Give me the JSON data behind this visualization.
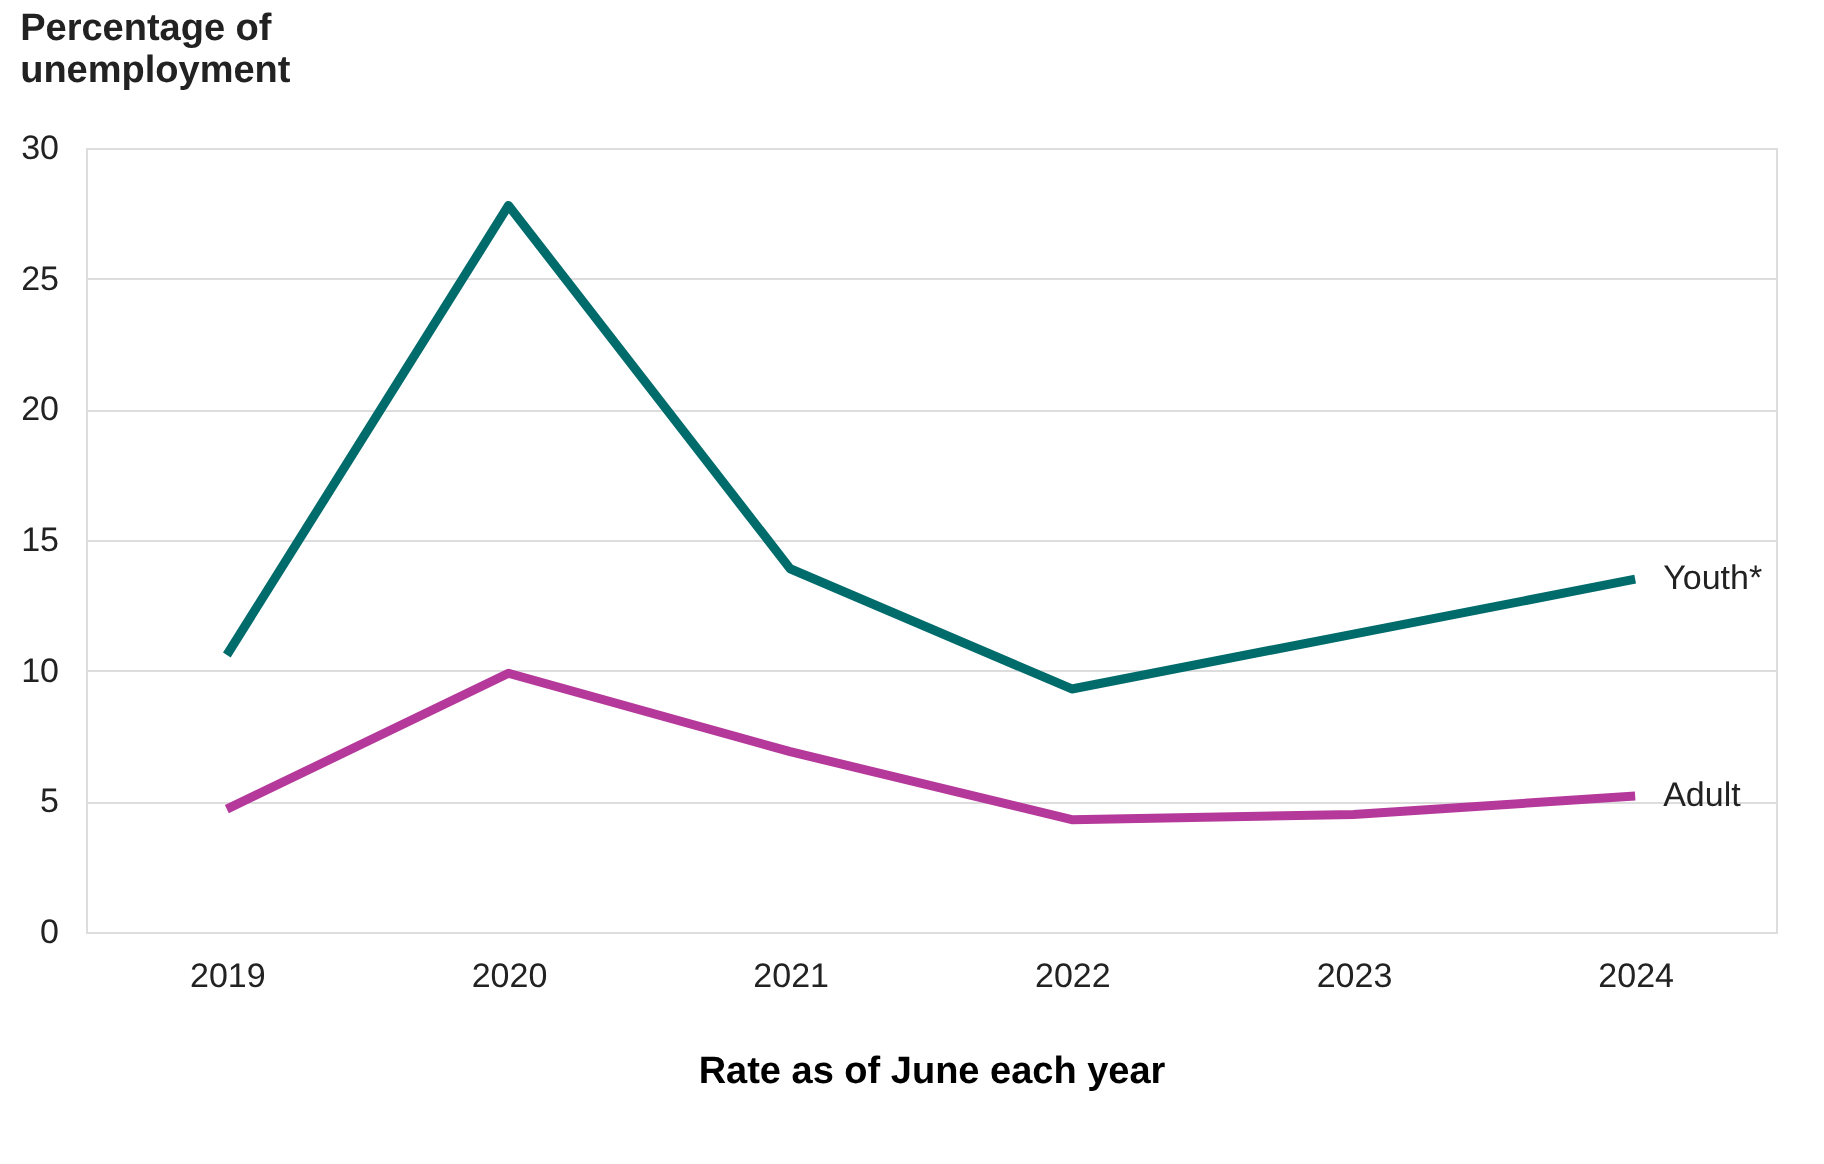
{
  "chart_data": {
    "type": "line",
    "ylabel": "Percentage of unemployment",
    "xlabel": "Rate as of June each year",
    "categories": [
      "2019",
      "2020",
      "2021",
      "2022",
      "2023",
      "2024"
    ],
    "series": [
      {
        "name": "Youth*",
        "color": "#006b6b",
        "values": [
          10.6,
          27.8,
          13.9,
          9.3,
          11.4,
          13.5
        ]
      },
      {
        "name": "Adult",
        "color": "#b5399a",
        "values": [
          4.7,
          9.9,
          6.9,
          4.3,
          4.5,
          5.2
        ]
      }
    ],
    "ylim": [
      0,
      30
    ],
    "yticks": [
      0,
      5,
      10,
      15,
      20,
      25,
      30
    ],
    "grid": "y",
    "legend": false,
    "marker": "none",
    "line_style": "solid"
  }
}
